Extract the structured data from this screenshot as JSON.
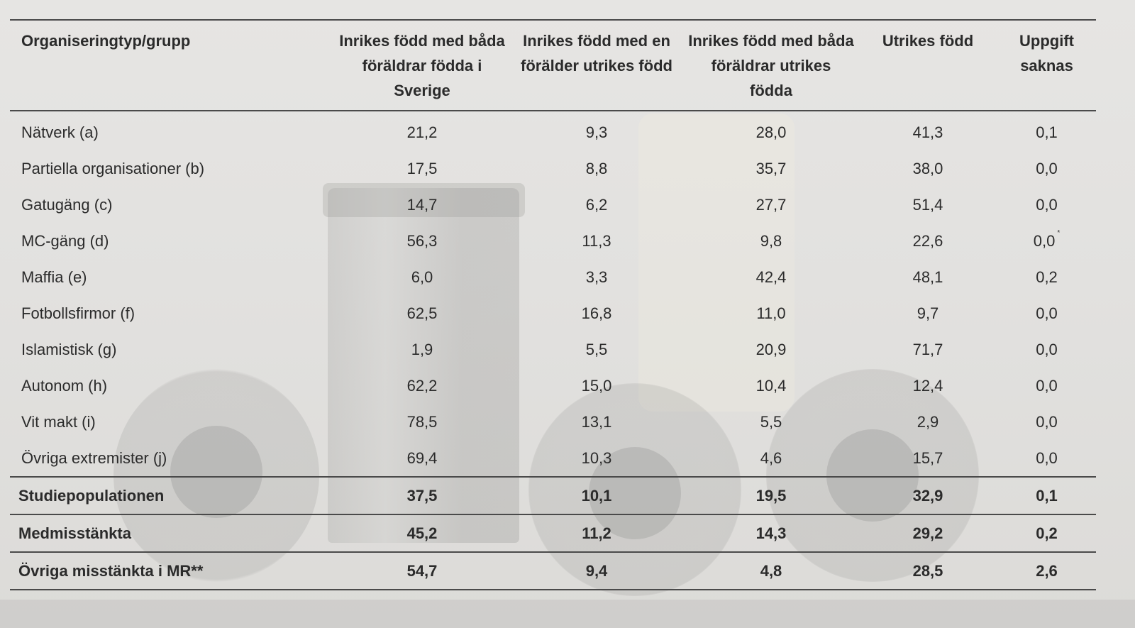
{
  "table": {
    "headers": [
      "Organiseringtyp/grupp",
      "Inrikes född med båda föräldrar födda i Sverige",
      "Inrikes född med en förälder utrikes född",
      "Inrikes född med båda föräldrar utrikes födda",
      "Utrikes född",
      "Uppgift saknas"
    ],
    "rows": [
      {
        "label": "Nätverk (a)",
        "values": [
          "21,2",
          "9,3",
          "28,0",
          "41,3",
          "0,1"
        ]
      },
      {
        "label": "Partiella organisationer (b)",
        "values": [
          "17,5",
          "8,8",
          "35,7",
          "38,0",
          "0,0"
        ]
      },
      {
        "label": "Gatugäng (c)",
        "values": [
          "14,7",
          "6,2",
          "27,7",
          "51,4",
          "0,0"
        ]
      },
      {
        "label": "MC-gäng (d)",
        "values": [
          "56,3",
          "11,3",
          "9,8",
          "22,6",
          "0,0"
        ],
        "mark": "*"
      },
      {
        "label": "Maffia (e)",
        "values": [
          "6,0",
          "3,3",
          "42,4",
          "48,1",
          "0,2"
        ]
      },
      {
        "label": "Fotbollsfirmor (f)",
        "values": [
          "62,5",
          "16,8",
          "11,0",
          "9,7",
          "0,0"
        ]
      },
      {
        "label": "Islamistisk (g)",
        "values": [
          "1,9",
          "5,5",
          "20,9",
          "71,7",
          "0,0"
        ]
      },
      {
        "label": "Autonom (h)",
        "values": [
          "62,2",
          "15,0",
          "10,4",
          "12,4",
          "0,0"
        ]
      },
      {
        "label": "Vit makt (i)",
        "values": [
          "78,5",
          "13,1",
          "5,5",
          "2,9",
          "0,0"
        ]
      },
      {
        "label": "Övriga extremister (j)",
        "values": [
          "69,4",
          "10,3",
          "4,6",
          "15,7",
          "0,0"
        ]
      }
    ],
    "summary": [
      {
        "label": "Studiepopulationen",
        "values": [
          "37,5",
          "10,1",
          "19,5",
          "32,9",
          "0,1"
        ]
      },
      {
        "label": "Medmisstänkta",
        "values": [
          "45,2",
          "11,2",
          "14,3",
          "29,2",
          "0,2"
        ]
      },
      {
        "label": "Övriga misstänkta i MR**",
        "values": [
          "54,7",
          "9,4",
          "4,8",
          "28,5",
          "2,6"
        ]
      }
    ]
  }
}
